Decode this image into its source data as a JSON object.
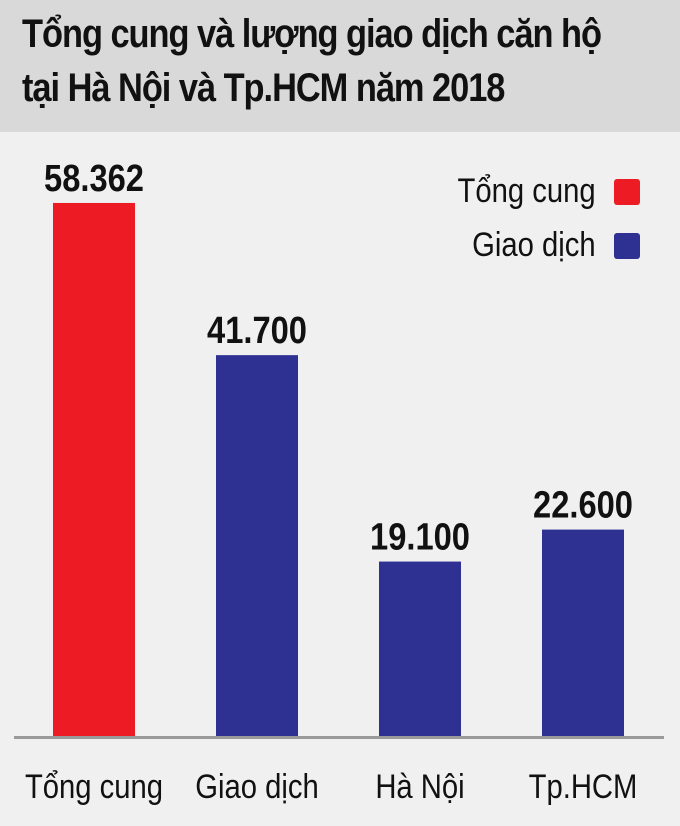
{
  "chart_data": {
    "type": "bar",
    "title": "Tổng cung và lượng giao dịch căn hộ tại Hà Nội và Tp.HCM năm 2018",
    "title_lines": [
      "Tổng cung và lượng giao dịch căn hộ",
      "tại Hà Nội và Tp.HCM năm 2018"
    ],
    "xlabel": "",
    "ylabel": "",
    "categories": [
      "Tổng cung",
      "Giao dịch",
      "Hà Nội",
      "Tp.HCM"
    ],
    "values": [
      58362,
      41700,
      19100,
      22600
    ],
    "value_labels": [
      "58.362",
      "41.700",
      "19.100",
      "22.600"
    ],
    "bar_series": [
      "Tổng cung",
      "Giao dịch",
      "Giao dịch",
      "Giao dịch"
    ],
    "legend": [
      {
        "name": "Tổng cung",
        "color": "#ed1c24"
      },
      {
        "name": "Giao dịch",
        "color": "#2e3192"
      }
    ],
    "legend_position": "top-right",
    "ylim": [
      0,
      60000
    ],
    "grid": false
  },
  "colors": {
    "title_band": "#d9d9d9",
    "plot_background": "#f0f0f0",
    "supply": "#ed1c24",
    "transactions": "#2e3192",
    "baseline": "#9a9a9a",
    "text": "#111111"
  }
}
